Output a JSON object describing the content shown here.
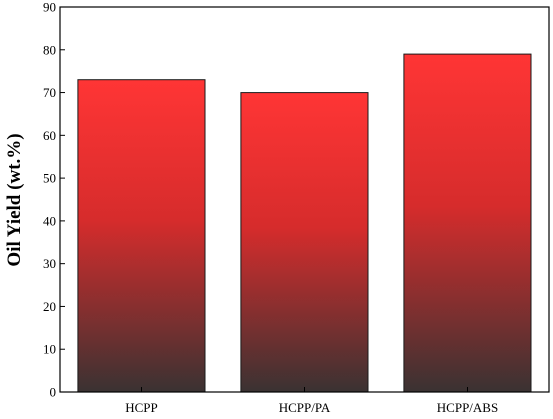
{
  "chart_data": {
    "type": "bar",
    "title": "",
    "xlabel": "",
    "ylabel": "Oil Yield (wt.%)",
    "categories": [
      "HCPP",
      "HCPP/PA",
      "HCPP/ABS"
    ],
    "values": [
      73,
      70,
      79
    ],
    "ylim": [
      0,
      90
    ],
    "yticks": [
      0,
      10,
      20,
      30,
      40,
      50,
      60,
      70,
      80,
      90
    ],
    "grid": false,
    "legend": "none",
    "bar_gradient": {
      "top_color": "#ff3535",
      "mid_color": "#d62c2c",
      "bottom_color": "#3a3232"
    },
    "bar_edge_color": "#1a1a1a",
    "axis_color": "#000000"
  }
}
